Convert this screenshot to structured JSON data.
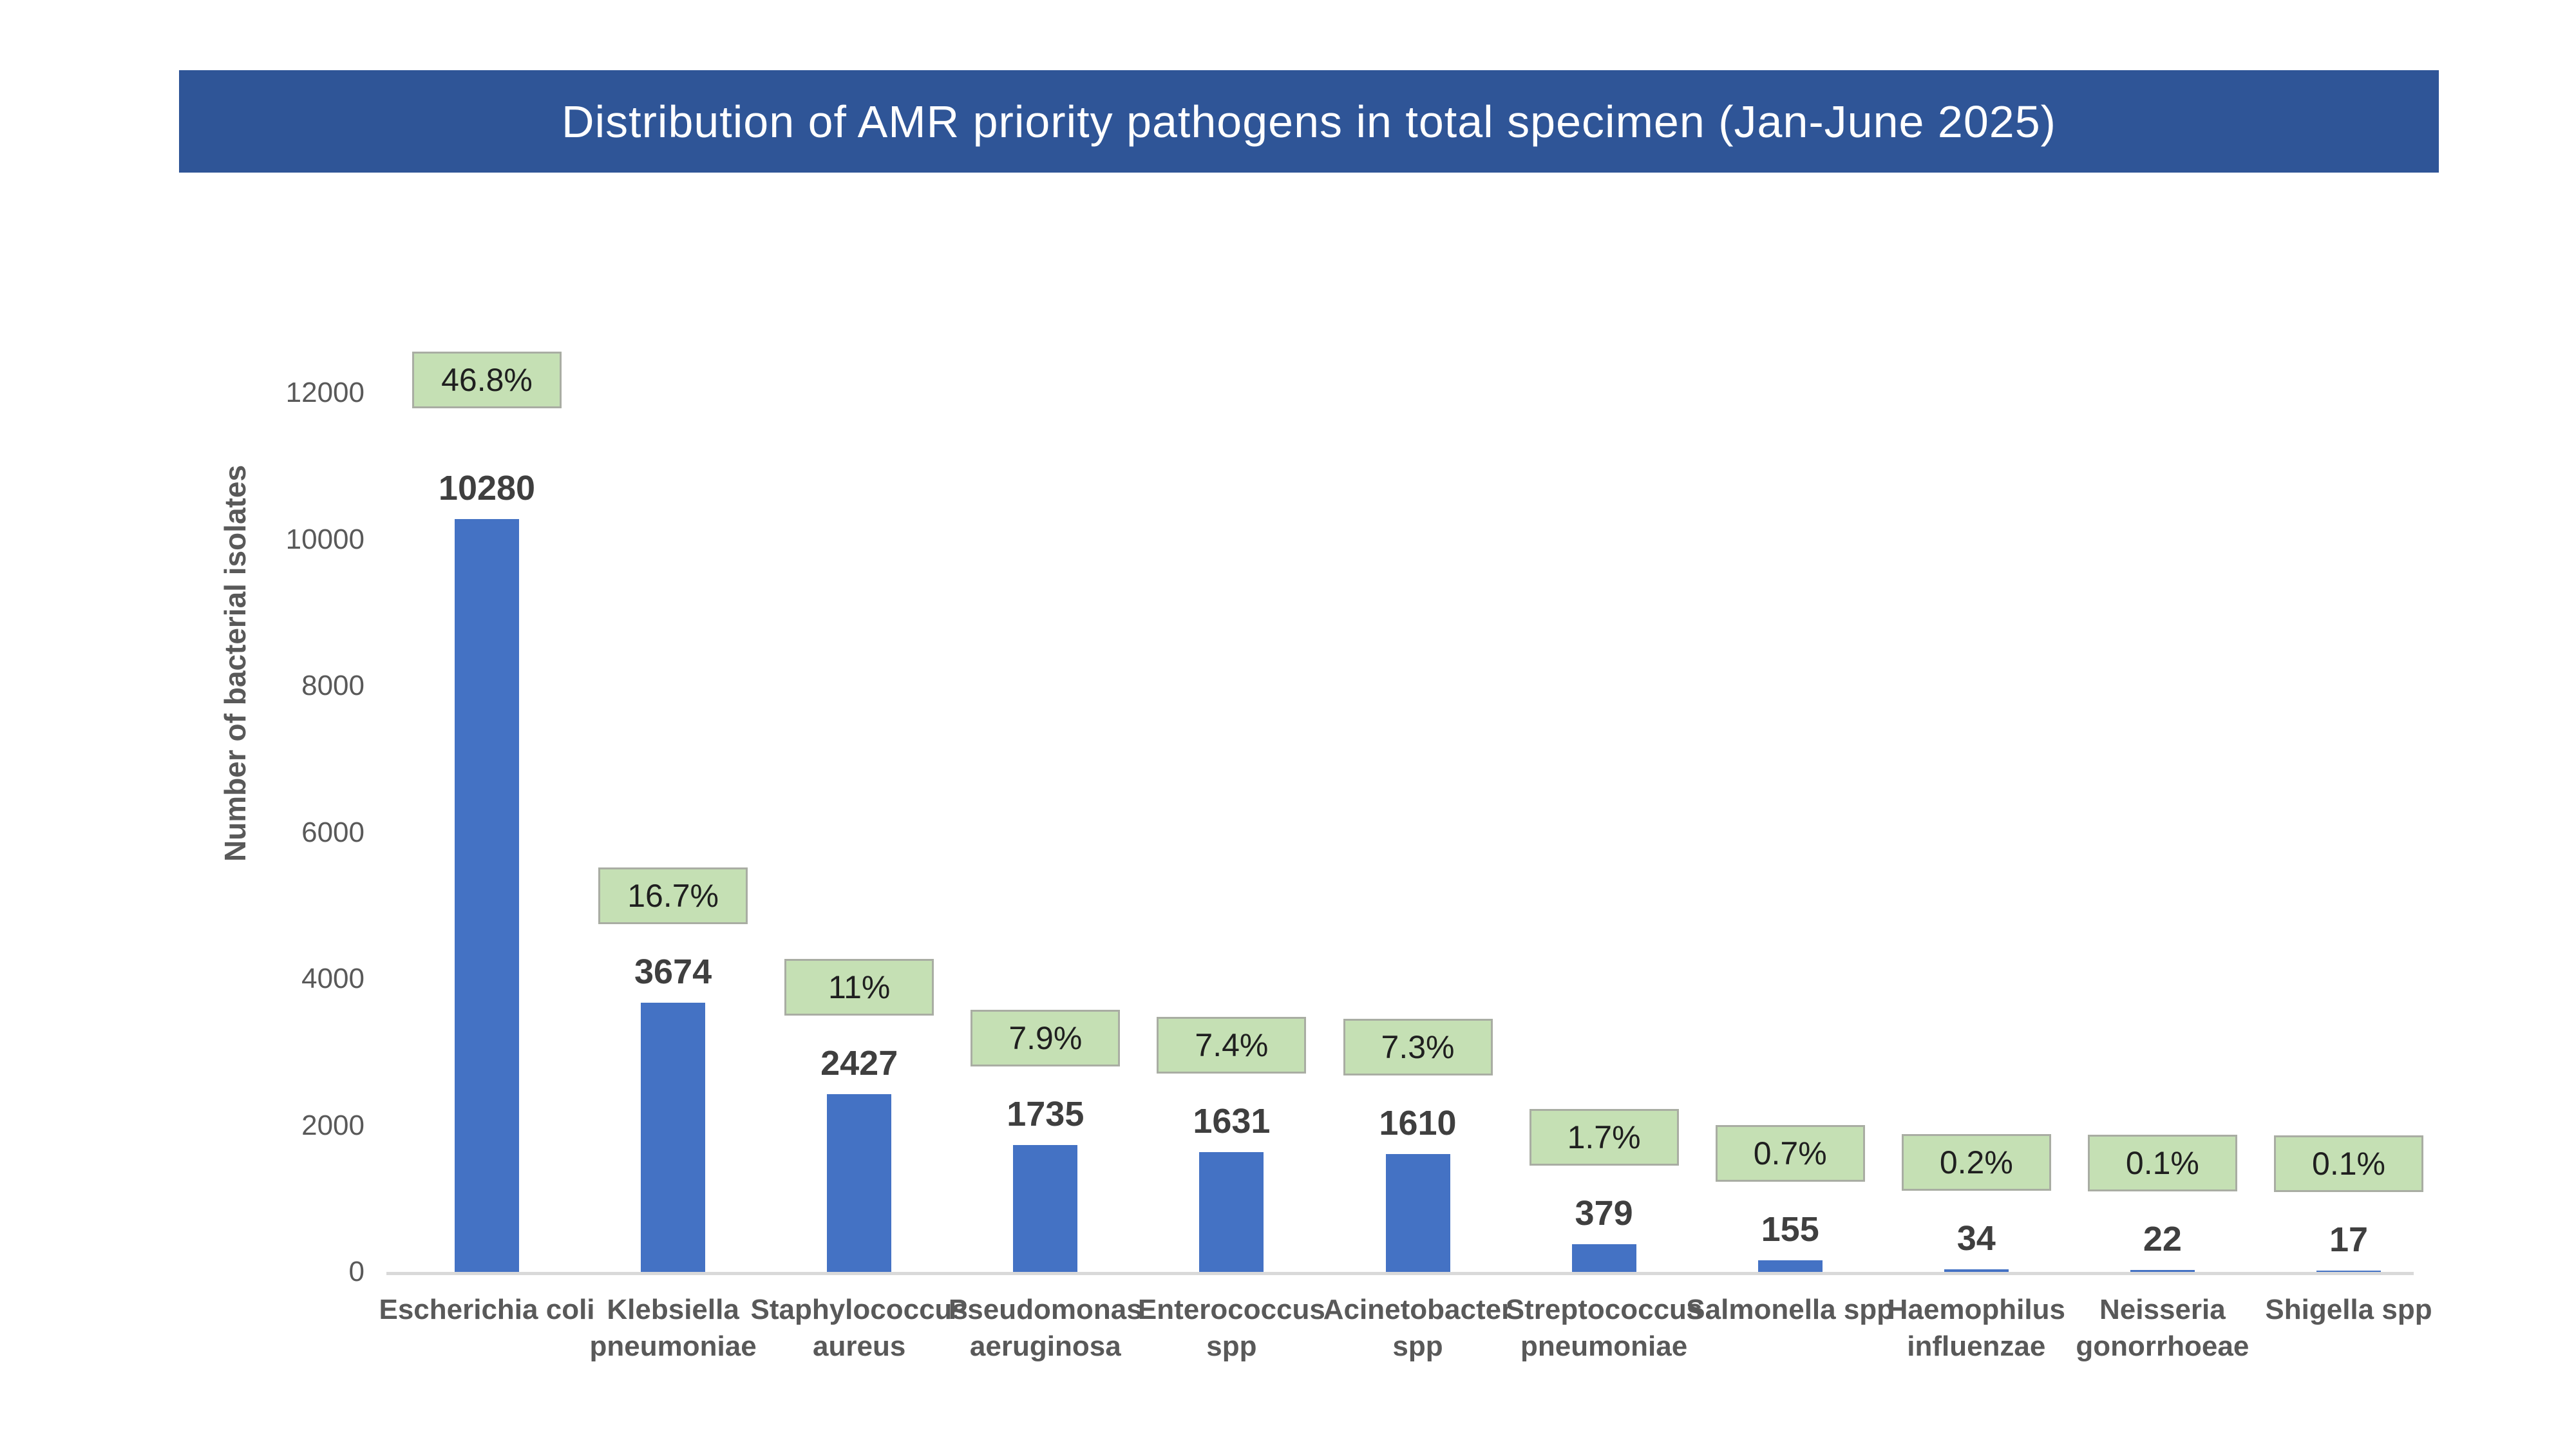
{
  "chart_data": {
    "type": "bar",
    "title": "Distribution of AMR priority pathogens in total specimen (Jan-June 2025)",
    "ylabel": "Number of bacterial isolates",
    "xlabel": "",
    "ylim": [
      0,
      12000
    ],
    "yticks": [
      0,
      2000,
      4000,
      6000,
      8000,
      10000,
      12000
    ],
    "grid": false,
    "legend": "none",
    "categories": [
      "Escherichia coli",
      "Klebsiella pneumoniae",
      "Staphylococcus aureus",
      "Pseudomonas aeruginosa",
      "Enterococcus spp",
      "Acinetobacter spp",
      "Streptococcus pneumoniae",
      "Salmonella spp",
      "Haemophilus influenzae",
      "Neisseria gonorrhoeae",
      "Shigella spp"
    ],
    "category_lines": [
      [
        "Escherichia coli"
      ],
      [
        "Klebsiella",
        "pneumoniae"
      ],
      [
        "Staphylococcus",
        "aureus"
      ],
      [
        "Pseudomonas",
        "aeruginosa"
      ],
      [
        "Enterococcus",
        "spp"
      ],
      [
        "Acinetobacter",
        "spp"
      ],
      [
        "Streptococcus",
        "pneumoniae"
      ],
      [
        "Salmonella spp"
      ],
      [
        "Haemophilus",
        "influenzae"
      ],
      [
        "Neisseria",
        "gonorrhoeae"
      ],
      [
        "Shigella spp"
      ]
    ],
    "values": [
      10280,
      3674,
      2427,
      1735,
      1631,
      1610,
      379,
      155,
      34,
      22,
      17
    ],
    "percent_labels": [
      "46.8%",
      "16.7%",
      "11%",
      "7.9%",
      "7.4%",
      "7.3%",
      "1.7%",
      "0.7%",
      "0.2%",
      "0.1%",
      "0.1%"
    ]
  },
  "colors": {
    "banner_bg": "#2F5597",
    "banner_text": "#FFFFFF",
    "bar_fill": "#4472C4",
    "pct_box_fill": "#C5E0B4",
    "pct_box_border": "#A9ADA3",
    "value_label_text": "#3F3F3F",
    "pct_text": "#1F1F1F",
    "axis_text": "#595959",
    "axis_line": "#D9D9D9"
  }
}
